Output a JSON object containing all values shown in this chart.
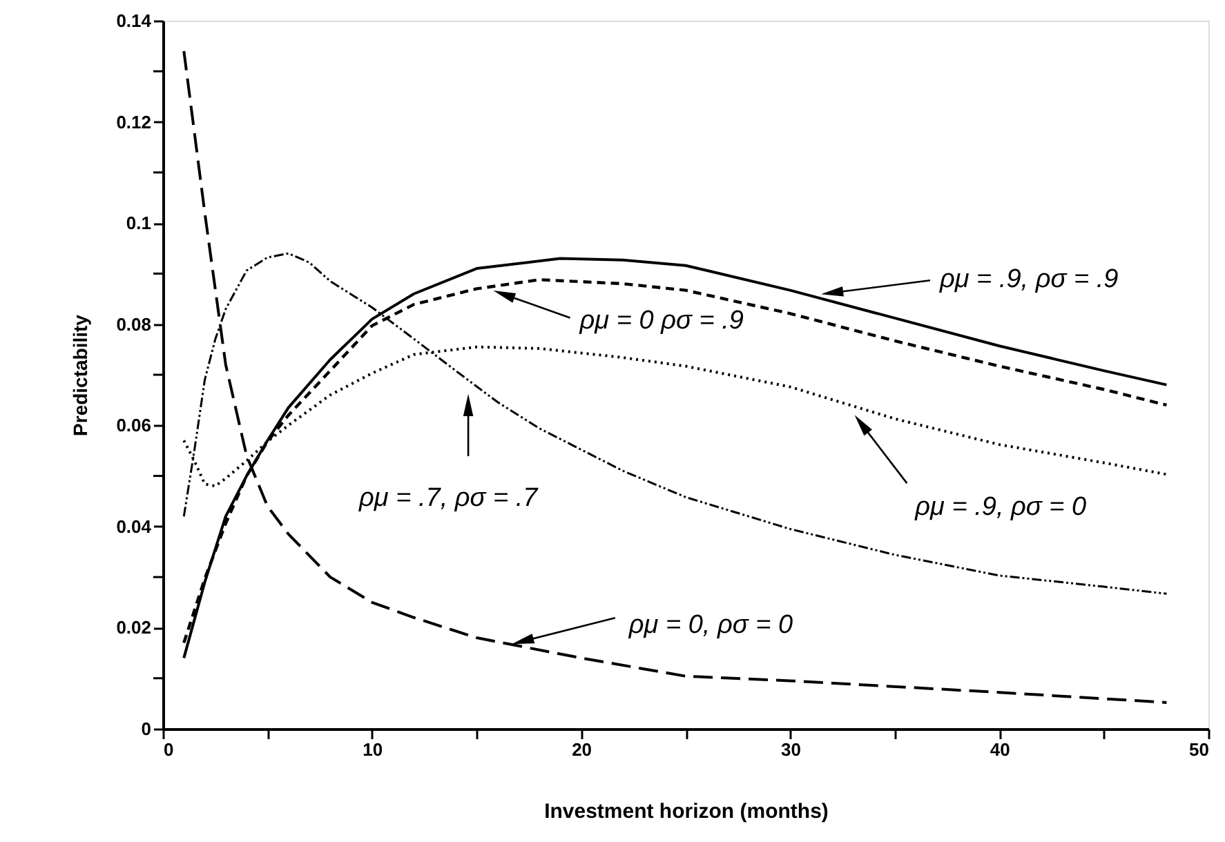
{
  "chart_data": {
    "type": "line",
    "xlabel": "Investment horizon (months)",
    "ylabel": "Predictability",
    "xlim": [
      0,
      50
    ],
    "ylim": [
      0,
      0.14
    ],
    "xticks": [
      0,
      {
        "value": 5,
        "label": null
      },
      10,
      {
        "value": 15,
        "label": null
      },
      20,
      {
        "value": 25,
        "label": null
      },
      30,
      {
        "value": 35,
        "label": null
      },
      40,
      {
        "value": 45,
        "label": null
      },
      50
    ],
    "yticks": [
      0,
      {
        "value": 0.01,
        "label": null
      },
      0.02,
      {
        "value": 0.03,
        "label": null
      },
      0.04,
      {
        "value": 0.05,
        "label": null
      },
      0.06,
      {
        "value": 0.07,
        "label": null
      },
      0.08,
      {
        "value": 0.09,
        "label": null
      },
      0.1,
      {
        "value": 0.11,
        "label": null
      },
      0.12,
      {
        "value": 0.13,
        "label": null
      },
      0.14
    ],
    "grid": false,
    "marker": "none",
    "series": [
      {
        "color": "#000000",
        "line_style": "solid",
        "x": [
          1,
          2,
          3,
          4,
          5,
          6,
          8,
          10,
          12,
          15,
          19,
          22,
          25,
          30,
          35,
          40,
          45,
          48
        ],
        "values": [
          0.014,
          0.029,
          0.042,
          0.05,
          0.057,
          0.0635,
          0.073,
          0.081,
          0.086,
          0.091,
          0.093,
          0.0927,
          0.0916,
          0.0867,
          0.0812,
          0.0757,
          0.0708,
          0.068
        ]
      },
      {
        "color": "#000000",
        "line_style": "dashed",
        "x": [
          1,
          2,
          3,
          4,
          5,
          6,
          8,
          10,
          12,
          15,
          18,
          22,
          25,
          30,
          35,
          40,
          45,
          48
        ],
        "values": [
          0.017,
          0.0297,
          0.0406,
          0.05,
          0.0568,
          0.062,
          0.0708,
          0.0797,
          0.0839,
          0.087,
          0.0888,
          0.088,
          0.0867,
          0.0821,
          0.0767,
          0.0717,
          0.0671,
          0.064
        ]
      },
      {
        "color": "#000000",
        "line_style": "dotted",
        "x": [
          1,
          1.5,
          2,
          2.5,
          3,
          4,
          5,
          6,
          8,
          10,
          12,
          15,
          18,
          22,
          25,
          30,
          35,
          40,
          45,
          48
        ],
        "values": [
          0.057,
          0.053,
          0.0484,
          0.048,
          0.0495,
          0.053,
          0.0568,
          0.06,
          0.066,
          0.0703,
          0.074,
          0.0755,
          0.0752,
          0.0734,
          0.0717,
          0.0676,
          0.0613,
          0.0562,
          0.0526,
          0.0503
        ]
      },
      {
        "color": "#000000",
        "line_style": "dashdot",
        "x": [
          1,
          1.5,
          2,
          2.5,
          3,
          4,
          5,
          6,
          7,
          8,
          10,
          12,
          14,
          16,
          18,
          20,
          22,
          25,
          30,
          35,
          40,
          45,
          48
        ],
        "values": [
          0.042,
          0.055,
          0.069,
          0.077,
          0.083,
          0.0906,
          0.0932,
          0.094,
          0.0922,
          0.0885,
          0.0833,
          0.0771,
          0.0708,
          0.0646,
          0.0594,
          0.0552,
          0.051,
          0.0458,
          0.0395,
          0.0344,
          0.0303,
          0.0281,
          0.0267
        ]
      },
      {
        "color": "#000000",
        "line_style": "longdash",
        "x": [
          1,
          2,
          3,
          4,
          5,
          6,
          8,
          10,
          12,
          15,
          20,
          25,
          30,
          40,
          48
        ],
        "values": [
          0.134,
          0.102,
          0.072,
          0.054,
          0.044,
          0.0385,
          0.03,
          0.025,
          0.022,
          0.018,
          0.014,
          0.0104,
          0.0095,
          0.0072,
          0.0052
        ]
      }
    ],
    "annotations": [
      {
        "text": "ρμ = .9, ρσ = .9",
        "x": 32.0,
        "y": 0.0862
      },
      {
        "text": "ρμ = 0 ρσ = .9",
        "x": 16.3,
        "y": 0.0859
      },
      {
        "text": "ρμ = .7, ρσ = .7",
        "x": 14.6,
        "y": 0.064
      },
      {
        "text": "ρμ = .9, ρσ = 0",
        "x": 33.4,
        "y": 0.0603
      },
      {
        "text": "ρμ = 0, ρσ = 0",
        "x": 17.2,
        "y": 0.0173
      }
    ]
  }
}
